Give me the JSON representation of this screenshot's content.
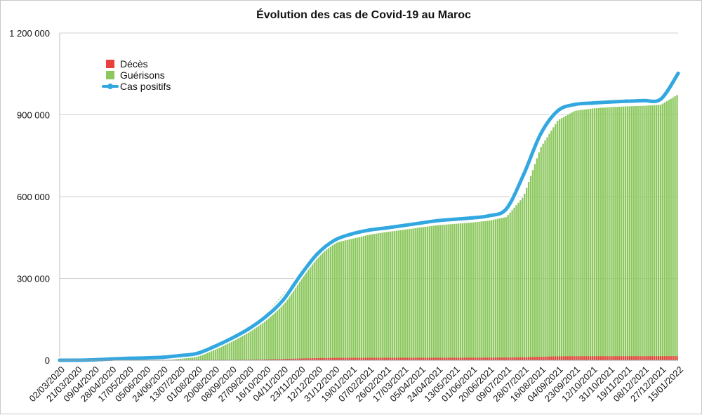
{
  "chart_data": {
    "type": "bar",
    "title": "Évolution des cas de Covid-19 au Maroc",
    "xlabel": "",
    "ylabel": "",
    "ylim": [
      0,
      1200000
    ],
    "y_ticks": [
      0,
      300000,
      600000,
      900000,
      1200000
    ],
    "y_tick_labels": [
      "0",
      "300 000",
      "600 000",
      "900 000",
      "1 200 000"
    ],
    "grid": true,
    "legend_position": "top-left",
    "x_tick_labels": [
      "02/03/2020",
      "21/03/2020",
      "09/04/2020",
      "28/04/2020",
      "17/05/2020",
      "05/06/2020",
      "24/06/2020",
      "13/07/2020",
      "01/08/2020",
      "20/08/2020",
      "08/09/2020",
      "27/09/2020",
      "16/10/2020",
      "04/11/2020",
      "23/11/2020",
      "12/12/2020",
      "31/12/2020",
      "19/01/2021",
      "07/02/2021",
      "26/02/2021",
      "17/03/2021",
      "05/04/2021",
      "24/04/2021",
      "13/05/2021",
      "01/06/2021",
      "20/06/2021",
      "09/07/2021",
      "28/07/2021",
      "16/08/2021",
      "04/09/2021",
      "23/09/2021",
      "12/10/2021",
      "31/10/2021",
      "19/11/2021",
      "08/12/2021",
      "27/12/2021",
      "15/01/2022"
    ],
    "series": [
      {
        "name": "Décès",
        "kind": "bar",
        "color": "#e8403a",
        "values": [
          0,
          0,
          100,
          180,
          190,
          200,
          220,
          240,
          400,
          700,
          1300,
          1900,
          3000,
          4500,
          6300,
          7800,
          8600,
          8800,
          8900,
          9000,
          9050,
          9100,
          9150,
          9200,
          9250,
          9500,
          9800,
          10700,
          12500,
          14300,
          14500,
          14600,
          14700,
          14700,
          14750,
          14800,
          14900
        ]
      },
      {
        "name": "Guérisons",
        "kind": "bar",
        "color": "#8dc85f",
        "values": [
          0,
          0,
          600,
          1300,
          4200,
          7000,
          9000,
          13000,
          30000,
          50000,
          77000,
          120000,
          170000,
          240000,
          320000,
          400000,
          430000,
          445000,
          460000,
          470000,
          478000,
          487000,
          495000,
          500000,
          505000,
          512000,
          525000,
          600000,
          780000,
          880000,
          915000,
          923000,
          928000,
          931000,
          933000,
          937000,
          975000
        ]
      },
      {
        "name": "Cas positifs",
        "kind": "line",
        "color": "#33a8e0",
        "values": [
          0,
          100,
          1500,
          4500,
          7000,
          8500,
          11000,
          17000,
          25000,
          50000,
          80000,
          115000,
          160000,
          220000,
          310000,
          390000,
          440000,
          463000,
          477000,
          485000,
          494000,
          503000,
          512000,
          517000,
          522000,
          530000,
          555000,
          680000,
          830000,
          915000,
          938000,
          943000,
          947000,
          950000,
          952000,
          958000,
          1052000
        ]
      }
    ]
  }
}
